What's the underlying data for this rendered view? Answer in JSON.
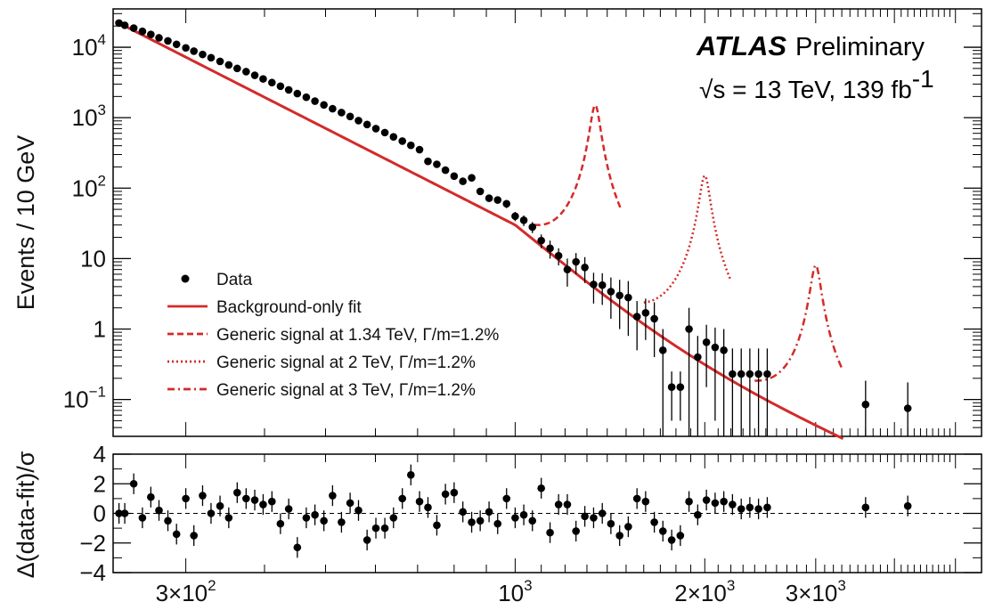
{
  "colors": {
    "accent": "#d42a2a",
    "data": "#000000"
  },
  "chart_data": [
    {
      "type": "scatter",
      "panel": "main",
      "x_scale": "log",
      "y_scale": "log",
      "xlim": [
        230,
        5500
      ],
      "ylim": [
        0.03,
        35000
      ],
      "ylabel": "Events / 10 GeV",
      "y_ticks": [
        {
          "value": 10000,
          "base": "10",
          "exp": "4"
        },
        {
          "value": 1000,
          "base": "10",
          "exp": "3"
        },
        {
          "value": 100,
          "base": "10",
          "exp": "2"
        },
        {
          "value": 10,
          "base": "10",
          "exp": ""
        },
        {
          "value": 1,
          "base": "1",
          "exp": ""
        },
        {
          "value": 0.1,
          "base": "10",
          "exp": "−1"
        }
      ],
      "experiment": "ATLAS",
      "experiment_status": "Preliminary",
      "energy_label": "√s = 13 TeV, 139 fb",
      "lumi_exponent": "-1",
      "legend": [
        {
          "label": "Data",
          "style": "marker"
        },
        {
          "label": "Background-only fit",
          "style": "solid"
        },
        {
          "label": "Generic signal at 1.34 TeV, Γ/m=1.2%",
          "style": "dashed"
        },
        {
          "label": "Generic signal at 2 TeV, Γ/m=1.2%",
          "style": "dotted"
        },
        {
          "label": "Generic signal at 3 TeV, Γ/m=1.2%",
          "style": "dashdot"
        }
      ],
      "legend_position": "bottom-left",
      "series": [
        {
          "name": "Data",
          "x": [
            235,
            240,
            248,
            256,
            264,
            272,
            281,
            290,
            300,
            309,
            319,
            329,
            340,
            351,
            362,
            374,
            386,
            398,
            411,
            424,
            437,
            451,
            466,
            481,
            497,
            513,
            530,
            547,
            564,
            582,
            601,
            621,
            641,
            662,
            683,
            705,
            727,
            751,
            775,
            800,
            826,
            853,
            880,
            909,
            938,
            969,
            1000,
            1032,
            1065,
            1100,
            1136,
            1172,
            1210,
            1249,
            1290,
            1332,
            1375,
            1419,
            1465,
            1512,
            1561,
            1611,
            1663,
            1716,
            1772,
            1829,
            1888,
            1949,
            2012,
            2077,
            2144,
            2213,
            2285,
            2358,
            2434,
            2513,
            3600,
            4200
          ],
          "y": [
            22000,
            20500,
            18700,
            16800,
            15200,
            13600,
            12300,
            11000,
            9800,
            8800,
            7900,
            7100,
            6300,
            5600,
            5000,
            4500,
            4000,
            3550,
            3150,
            2800,
            2480,
            2200,
            1950,
            1720,
            1520,
            1340,
            1180,
            1040,
            910,
            800,
            700,
            615,
            535,
            465,
            405,
            352,
            240,
            218,
            180,
            148,
            125,
            140,
            90,
            72,
            68,
            60,
            40,
            35,
            28,
            18,
            14,
            11,
            7,
            9,
            7.5,
            4.3,
            4.2,
            3.4,
            3,
            2.8,
            1.5,
            1.7,
            1.4,
            0.5,
            0.15,
            0.15,
            1.0,
            0.4,
            0.65,
            0.55,
            0.5,
            0.23,
            0.23,
            0.23,
            0.23,
            0.23,
            0.085,
            0.075
          ],
          "yerr": [
            150,
            143,
            137,
            130,
            123,
            117,
            111,
            105,
            99,
            94,
            89,
            84,
            79,
            75,
            71,
            67,
            63,
            60,
            56,
            53,
            50,
            47,
            44,
            41,
            39,
            37,
            34,
            32,
            30,
            28,
            26,
            25,
            23,
            22,
            20,
            19,
            15,
            15,
            13,
            12,
            11,
            12,
            9,
            8,
            8,
            8,
            6,
            6,
            5,
            4,
            4,
            3,
            3,
            3,
            3,
            2,
            2,
            2,
            2,
            2,
            1,
            1,
            1,
            0.5,
            0.1,
            0.1,
            1,
            0.4,
            0.5,
            0.5,
            0.5,
            0.3,
            0.3,
            0.3,
            0.3,
            0.3,
            0.1,
            0.1
          ]
        },
        {
          "name": "Background-only fit",
          "formula": "p1*(1-x)^p2*x^(p3)",
          "anchor_points": [
            [
              235,
              22000
            ],
            [
              1000,
              30
            ],
            [
              3500,
              0.022
            ]
          ]
        },
        {
          "name": "Generic signal at 1.34 TeV, Γ/m=1.2%",
          "mass": 1340,
          "peak": 1500
        },
        {
          "name": "Generic signal at 2 TeV, Γ/m=1.2%",
          "mass": 2000,
          "peak": 150
        },
        {
          "name": "Generic signal at 3 TeV, Γ/m=1.2%",
          "mass": 3000,
          "peak": 8
        }
      ]
    },
    {
      "type": "scatter",
      "panel": "ratio",
      "x_scale": "log",
      "xlim": [
        230,
        5500
      ],
      "ylim": [
        -4,
        4
      ],
      "ylabel": "Δ(data-fit)/σ",
      "y_ticks": [
        "4",
        "2",
        "0",
        "−2",
        "−4"
      ],
      "x_ticks": [
        {
          "value": 300,
          "label": "3×10",
          "exp": "2"
        },
        {
          "value": 1000,
          "label": "10",
          "exp": "3"
        },
        {
          "value": 2000,
          "label": "2×10",
          "exp": "3"
        },
        {
          "value": 3000,
          "label": "3×10",
          "exp": "3"
        }
      ],
      "series": [
        {
          "name": "Data",
          "x": [
            235,
            240,
            248,
            256,
            264,
            272,
            281,
            290,
            300,
            309,
            319,
            329,
            340,
            351,
            362,
            374,
            386,
            398,
            411,
            424,
            437,
            451,
            466,
            481,
            497,
            513,
            530,
            547,
            564,
            582,
            601,
            621,
            641,
            662,
            683,
            705,
            727,
            751,
            775,
            800,
            826,
            853,
            880,
            909,
            938,
            969,
            1000,
            1032,
            1065,
            1100,
            1136,
            1172,
            1210,
            1249,
            1290,
            1332,
            1375,
            1419,
            1465,
            1512,
            1561,
            1611,
            1663,
            1716,
            1772,
            1829,
            1888,
            1949,
            2012,
            2077,
            2144,
            2213,
            2285,
            2358,
            2434,
            2513,
            3600,
            4200
          ],
          "y": [
            0,
            0,
            2,
            -0.3,
            1.1,
            0.2,
            -0.5,
            -1.4,
            1,
            -1.5,
            1.2,
            0,
            0.5,
            -0.3,
            1.4,
            1,
            0.9,
            0.6,
            0.8,
            -0.7,
            0.3,
            -2.3,
            -0.3,
            -0.1,
            -0.5,
            1.2,
            -0.6,
            0.7,
            0.2,
            -1.8,
            -1,
            -1,
            -0.3,
            1,
            2.6,
            0.8,
            0.4,
            -0.8,
            1.3,
            1.4,
            0.1,
            -0.6,
            -0.5,
            0.1,
            -0.7,
            1,
            -0.3,
            -0.1,
            -0.5,
            1.7,
            -1.3,
            0.6,
            0.6,
            -1.2,
            -0.2,
            -0.3,
            0,
            -0.7,
            -1.5,
            -0.9,
            1,
            0.8,
            -0.6,
            -1.2,
            -1.8,
            -1.5,
            0.8,
            -0.1,
            0.9,
            0.7,
            0.8,
            0.6,
            0.3,
            0.4,
            0.3,
            0.4,
            0.4,
            0.5
          ],
          "yerr": [
            0.7,
            0.7,
            0.7,
            0.7,
            0.7,
            0.7,
            0.7,
            0.7,
            0.7,
            0.7,
            0.7,
            0.7,
            0.7,
            0.7,
            0.7,
            0.7,
            0.7,
            0.7,
            0.7,
            0.7,
            0.7,
            0.7,
            0.7,
            0.7,
            0.7,
            0.7,
            0.7,
            0.7,
            0.7,
            0.7,
            0.7,
            0.7,
            0.7,
            0.7,
            0.7,
            0.7,
            0.7,
            0.7,
            0.7,
            0.7,
            0.7,
            0.7,
            0.7,
            0.7,
            0.7,
            0.7,
            0.7,
            0.7,
            0.7,
            0.7,
            0.7,
            0.7,
            0.7,
            0.7,
            0.7,
            0.7,
            0.7,
            0.7,
            0.7,
            0.7,
            0.7,
            0.7,
            0.7,
            0.7,
            0.7,
            0.7,
            0.7,
            0.7,
            0.7,
            0.7,
            0.7,
            0.7,
            0.7,
            0.7,
            0.7,
            0.7,
            0.7,
            0.7
          ]
        }
      ]
    }
  ]
}
